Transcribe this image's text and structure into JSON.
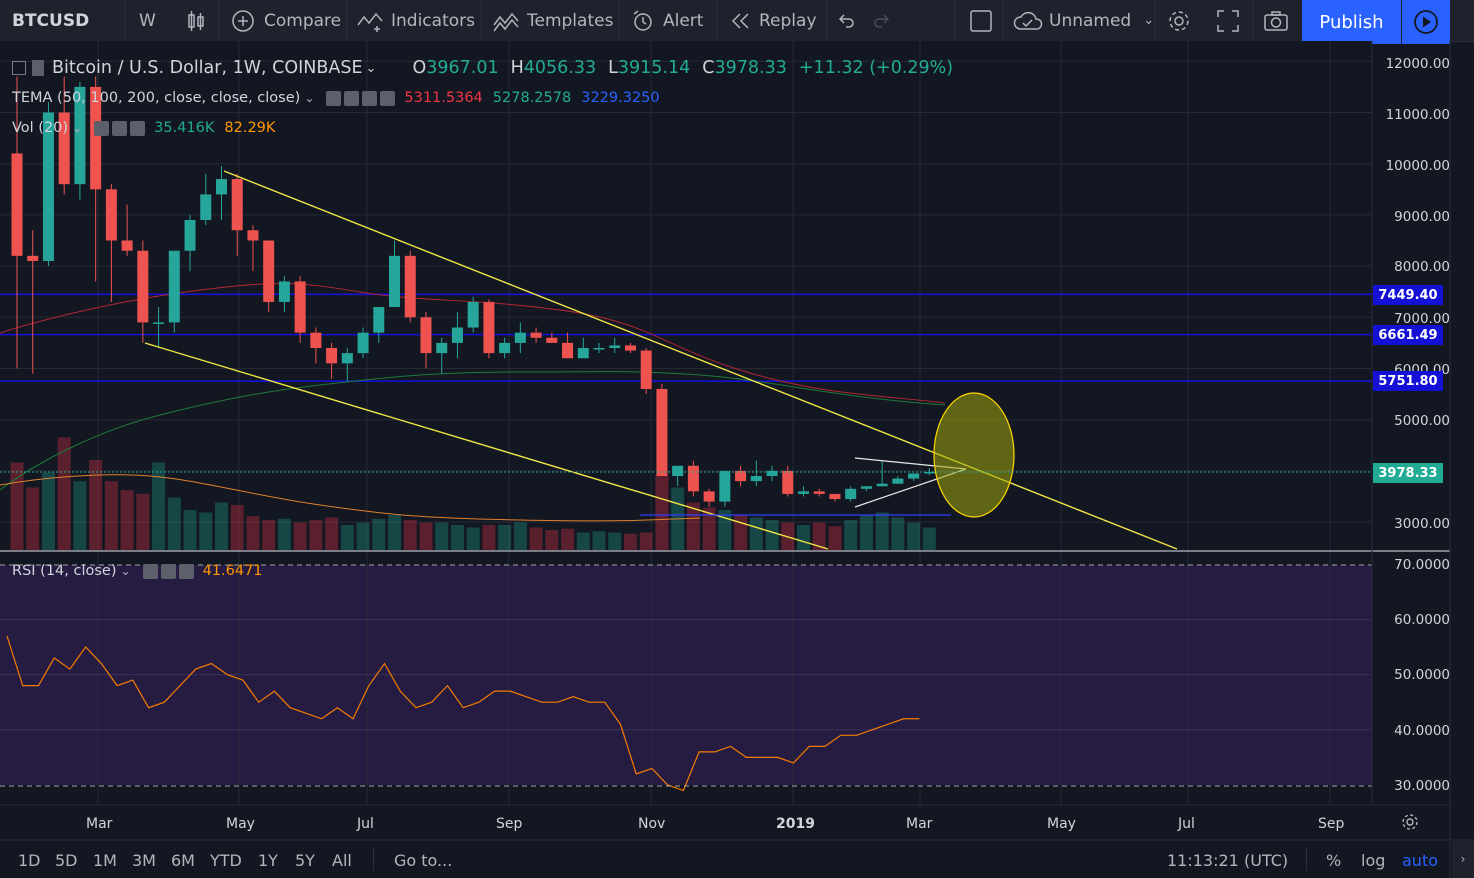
{
  "toolbar": {
    "symbol": "BTCUSD",
    "interval": "W",
    "compare": "Compare",
    "indicators": "Indicators",
    "templates": "Templates",
    "alert": "Alert",
    "replay": "Replay",
    "layout_name": "Unnamed",
    "publish": "Publish"
  },
  "legend": {
    "title": "Bitcoin / U.S. Dollar, 1W, COINBASE",
    "o_label": "O",
    "o": "3967.01",
    "h_label": "H",
    "h": "4056.33",
    "l_label": "L",
    "l": "3915.14",
    "c_label": "C",
    "c": "3978.33",
    "change": "+11.32 (+0.29%)",
    "tema_label": "TEMA (50, 100, 200, close, close, close)",
    "tema_values": [
      "5311.5364",
      "5278.2578",
      "3229.3250"
    ],
    "tema_colors": [
      "#f23645",
      "#22ab94",
      "#2962ff"
    ],
    "vol_label": "Vol (20)",
    "vol_values": [
      "35.416K",
      "82.29K"
    ],
    "rsi_label": "RSI (14, close)",
    "rsi_value": "41.6471"
  },
  "price_axis": [
    "12000.00",
    "11000.00",
    "10000.00",
    "9000.00",
    "8000.00",
    "7000.00",
    "6000.00",
    "5000.00",
    "3000.00"
  ],
  "price_badges": [
    {
      "text": "7449.40",
      "color": "#1510d6"
    },
    {
      "text": "6661.49",
      "color": "#1510d6"
    },
    {
      "text": "5751.80",
      "color": "#1510d6"
    },
    {
      "text": "3978.33",
      "color": "#22ab94"
    }
  ],
  "rsi_axis": [
    "70.0000",
    "60.0000",
    "50.0000",
    "40.0000",
    "30.0000"
  ],
  "time_axis": [
    "Mar",
    "May",
    "Jul",
    "Sep",
    "Nov",
    "2019",
    "Mar",
    "May",
    "Jul",
    "Sep"
  ],
  "bottom": {
    "ranges": [
      "1D",
      "5D",
      "1M",
      "3M",
      "6M",
      "YTD",
      "1Y",
      "5Y",
      "All"
    ],
    "goto": "Go to...",
    "clock": "11:13:21 (UTC)",
    "pct": "%",
    "log": "log",
    "auto": "auto"
  },
  "chart_data": {
    "type": "candlestick",
    "title": "Bitcoin / U.S. Dollar, 1W, COINBASE",
    "x": [
      "2018-01-29",
      "2018-02-05",
      "2018-02-12",
      "2018-02-19",
      "2018-02-26",
      "2018-03-05",
      "2018-03-12",
      "2018-03-19",
      "2018-03-26",
      "2018-04-02",
      "2018-04-09",
      "2018-04-16",
      "2018-04-23",
      "2018-04-30",
      "2018-05-07",
      "2018-05-14",
      "2018-05-21",
      "2018-05-28",
      "2018-06-04",
      "2018-06-11",
      "2018-06-18",
      "2018-06-25",
      "2018-07-02",
      "2018-07-09",
      "2018-07-16",
      "2018-07-23",
      "2018-07-30",
      "2018-08-06",
      "2018-08-13",
      "2018-08-20",
      "2018-08-27",
      "2018-09-03",
      "2018-09-10",
      "2018-09-17",
      "2018-09-24",
      "2018-10-01",
      "2018-10-08",
      "2018-10-15",
      "2018-10-22",
      "2018-10-29",
      "2018-11-05",
      "2018-11-12",
      "2018-11-19",
      "2018-11-26",
      "2018-12-03",
      "2018-12-10",
      "2018-12-17",
      "2018-12-24",
      "2018-12-31",
      "2019-01-07",
      "2019-01-14",
      "2019-01-21",
      "2019-01-28",
      "2019-02-04",
      "2019-02-11",
      "2019-02-18",
      "2019-02-25",
      "2019-03-04",
      "2019-03-11"
    ],
    "ohlc": [
      [
        10200,
        11700,
        6000,
        8200
      ],
      [
        8200,
        8700,
        5900,
        8100
      ],
      [
        8100,
        11200,
        8000,
        11000
      ],
      [
        11000,
        11700,
        9400,
        9600
      ],
      [
        9600,
        11600,
        9300,
        11500
      ],
      [
        11500,
        11700,
        7700,
        9500
      ],
      [
        9500,
        9600,
        7300,
        8500
      ],
      [
        8500,
        9200,
        8200,
        8300
      ],
      [
        8300,
        8500,
        6500,
        6900
      ],
      [
        6900,
        7200,
        6400,
        6900
      ],
      [
        6900,
        8300,
        6700,
        8300
      ],
      [
        8300,
        9000,
        7900,
        8900
      ],
      [
        8900,
        9800,
        8800,
        9400
      ],
      [
        9400,
        9950,
        8900,
        9700
      ],
      [
        9700,
        9800,
        8200,
        8700
      ],
      [
        8700,
        8800,
        7900,
        8500
      ],
      [
        8500,
        8500,
        7100,
        7300
      ],
      [
        7300,
        7800,
        7100,
        7700
      ],
      [
        7700,
        7800,
        6500,
        6700
      ],
      [
        6700,
        6800,
        6100,
        6400
      ],
      [
        6400,
        6500,
        5800,
        6100
      ],
      [
        6100,
        6400,
        5750,
        6300
      ],
      [
        6300,
        6800,
        6200,
        6700
      ],
      [
        6700,
        7100,
        6500,
        7200
      ],
      [
        7200,
        8500,
        7200,
        8200
      ],
      [
        8200,
        8300,
        6900,
        7000
      ],
      [
        7000,
        7100,
        6000,
        6300
      ],
      [
        6300,
        6600,
        5900,
        6500
      ],
      [
        6500,
        7100,
        6200,
        6800
      ],
      [
        6800,
        7400,
        6700,
        7300
      ],
      [
        7300,
        7350,
        6200,
        6300
      ],
      [
        6300,
        6600,
        6200,
        6500
      ],
      [
        6500,
        6900,
        6300,
        6700
      ],
      [
        6700,
        6800,
        6500,
        6600
      ],
      [
        6600,
        6700,
        6500,
        6500
      ],
      [
        6500,
        6700,
        6200,
        6200
      ],
      [
        6200,
        6600,
        6200,
        6400
      ],
      [
        6400,
        6500,
        6300,
        6400
      ],
      [
        6400,
        6600,
        6300,
        6450
      ],
      [
        6450,
        6500,
        6300,
        6350
      ],
      [
        6350,
        6400,
        5500,
        5600
      ],
      [
        5600,
        5700,
        3900,
        3900
      ],
      [
        3900,
        4100,
        3700,
        4100
      ],
      [
        4100,
        4200,
        3500,
        3600
      ],
      [
        3600,
        3650,
        3300,
        3400
      ],
      [
        3400,
        4000,
        3300,
        4000
      ],
      [
        4000,
        4100,
        3700,
        3800
      ],
      [
        3800,
        4200,
        3700,
        3900
      ],
      [
        3900,
        4100,
        3800,
        4000
      ],
      [
        4000,
        4100,
        3500,
        3550
      ],
      [
        3550,
        3700,
        3500,
        3600
      ],
      [
        3600,
        3650,
        3500,
        3550
      ],
      [
        3550,
        3550,
        3400,
        3450
      ],
      [
        3450,
        3700,
        3400,
        3650
      ],
      [
        3650,
        3700,
        3600,
        3700
      ],
      [
        3700,
        4200,
        3700,
        3750
      ],
      [
        3750,
        3900,
        3750,
        3850
      ],
      [
        3850,
        3950,
        3800,
        3950
      ],
      [
        3967.01,
        4056.33,
        3915.14,
        3978.33
      ]
    ],
    "volume": [
      70,
      50,
      62,
      90,
      55,
      72,
      55,
      48,
      45,
      70,
      42,
      32,
      30,
      38,
      36,
      27,
      24,
      25,
      22,
      24,
      26,
      20,
      22,
      25,
      28,
      24,
      22,
      22,
      20,
      18,
      20,
      20,
      22,
      18,
      16,
      17,
      14,
      15,
      14,
      13,
      14,
      60,
      50,
      38,
      34,
      32,
      28,
      26,
      24,
      22,
      20,
      22,
      19,
      24,
      28,
      30,
      26,
      22,
      18
    ],
    "rsi": [
      57,
      48,
      48,
      53,
      51,
      55,
      52,
      48,
      49,
      44,
      45,
      48,
      51,
      52,
      50,
      49,
      45,
      47,
      44,
      43,
      42,
      44,
      42,
      48,
      52,
      47,
      44,
      45,
      48,
      44,
      45,
      47,
      47,
      46,
      45,
      45,
      46,
      45,
      45,
      41,
      32,
      33,
      30,
      29,
      36,
      36,
      37,
      35,
      35,
      35,
      34,
      37,
      37,
      39,
      39,
      40,
      41,
      42,
      42
    ],
    "ylim": [
      2300,
      12500
    ],
    "rsi_ylim": [
      28,
      72
    ],
    "horizontal_levels": [
      7449.4,
      6661.49,
      5751.8
    ],
    "last_price": 3978.33
  }
}
